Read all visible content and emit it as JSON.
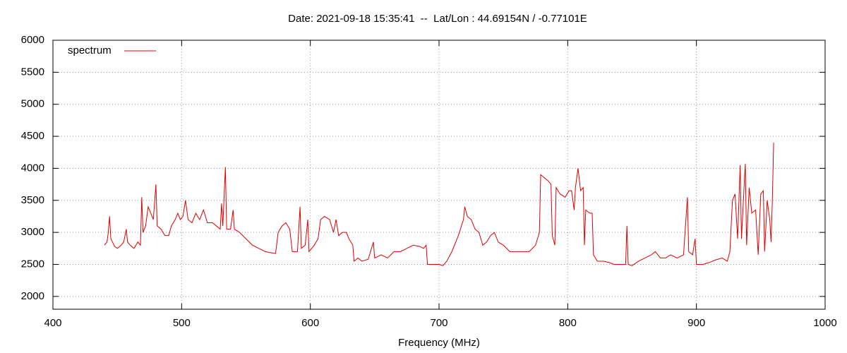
{
  "chart_data": {
    "type": "line",
    "title": "Date: 2021-09-18 15:35:41  --  Lat/Lon : 44.69154N / -0.77101E",
    "xlabel": "Frequency (MHz)",
    "xlim": [
      400,
      1000
    ],
    "xticks": [
      400,
      500,
      600,
      700,
      800,
      900,
      1000
    ],
    "ylim": [
      1800,
      6000
    ],
    "yticks": [
      2000,
      2500,
      3000,
      3500,
      4000,
      4500,
      5000,
      5500,
      6000
    ],
    "grid": true,
    "legend": "top-left",
    "x": [
      440,
      442,
      443,
      444,
      445,
      448,
      450,
      453,
      455,
      457,
      458,
      460,
      463,
      466,
      468,
      469,
      470,
      472,
      474,
      476,
      478,
      480,
      481,
      484,
      487,
      490,
      492,
      495,
      497,
      499,
      501,
      503,
      505,
      508,
      511,
      514,
      517,
      520,
      524,
      527,
      530,
      531,
      532,
      534,
      535,
      538,
      540,
      541,
      545,
      550,
      555,
      560,
      565,
      570,
      573,
      575,
      578,
      581,
      584,
      586,
      590,
      592,
      593,
      596,
      598,
      599,
      603,
      606,
      608,
      611,
      615,
      618,
      620,
      622,
      625,
      628,
      630,
      633,
      634,
      637,
      640,
      645,
      649,
      650,
      655,
      660,
      665,
      670,
      675,
      680,
      685,
      688,
      690,
      691,
      695,
      700,
      703,
      706,
      710,
      715,
      719,
      720,
      722,
      725,
      728,
      731,
      734,
      737,
      740,
      743,
      746,
      750,
      755,
      760,
      765,
      770,
      775,
      778,
      779,
      782,
      785,
      787,
      788,
      790,
      791,
      794,
      798,
      801,
      803,
      805,
      806,
      808,
      810,
      812,
      813,
      814,
      817,
      819,
      820,
      823,
      828,
      832,
      836,
      840,
      845,
      846,
      847,
      850,
      855,
      860,
      865,
      868,
      872,
      876,
      880,
      885,
      890,
      893,
      894,
      897,
      899,
      900,
      905,
      910,
      915,
      920,
      924,
      926,
      928,
      930,
      932,
      934,
      935,
      937,
      938,
      939,
      941,
      943,
      946,
      948,
      950,
      952,
      953,
      955,
      957,
      958,
      959,
      960
    ],
    "series": [
      {
        "name": "spectrum",
        "color": "#e00000",
        "values": [
          2800,
          2850,
          3000,
          3250,
          2900,
          2780,
          2750,
          2800,
          2850,
          3050,
          2850,
          2800,
          2750,
          2850,
          2800,
          3550,
          3000,
          3100,
          3400,
          3300,
          3200,
          3750,
          3100,
          3050,
          2950,
          2950,
          3100,
          3200,
          3300,
          3200,
          3250,
          3500,
          3200,
          3150,
          3300,
          3200,
          3350,
          3150,
          3150,
          3100,
          3050,
          3450,
          3100,
          4020,
          3050,
          3050,
          3350,
          3050,
          3000,
          2900,
          2800,
          2750,
          2700,
          2680,
          2670,
          3000,
          3100,
          3150,
          3050,
          2700,
          2700,
          3400,
          2750,
          2800,
          3200,
          2700,
          2800,
          2900,
          3200,
          3250,
          3200,
          3000,
          3200,
          2950,
          3000,
          3000,
          2900,
          2800,
          2550,
          2600,
          2550,
          2580,
          2850,
          2600,
          2650,
          2600,
          2700,
          2700,
          2750,
          2800,
          2780,
          2750,
          2800,
          2500,
          2500,
          2500,
          2480,
          2550,
          2700,
          2950,
          3200,
          3400,
          3250,
          3200,
          3050,
          3000,
          2800,
          2850,
          2950,
          3000,
          2850,
          2800,
          2700,
          2700,
          2700,
          2700,
          2800,
          3000,
          3900,
          3850,
          3800,
          3750,
          2950,
          2800,
          3700,
          3600,
          3550,
          3650,
          3650,
          3350,
          3700,
          4000,
          3650,
          3700,
          2800,
          3350,
          3300,
          3300,
          2650,
          2550,
          2550,
          2530,
          2500,
          2500,
          2500,
          3100,
          2500,
          2480,
          2550,
          2600,
          2650,
          2700,
          2600,
          2600,
          2650,
          2600,
          2650,
          3550,
          2700,
          2650,
          2900,
          2500,
          2500,
          2530,
          2570,
          2600,
          2550,
          2700,
          3500,
          3600,
          2900,
          4050,
          2900,
          3700,
          4070,
          2800,
          3700,
          3300,
          3350,
          2650,
          3600,
          3650,
          2700,
          3500,
          3200,
          2850,
          3500,
          4400
        ]
      }
    ]
  }
}
